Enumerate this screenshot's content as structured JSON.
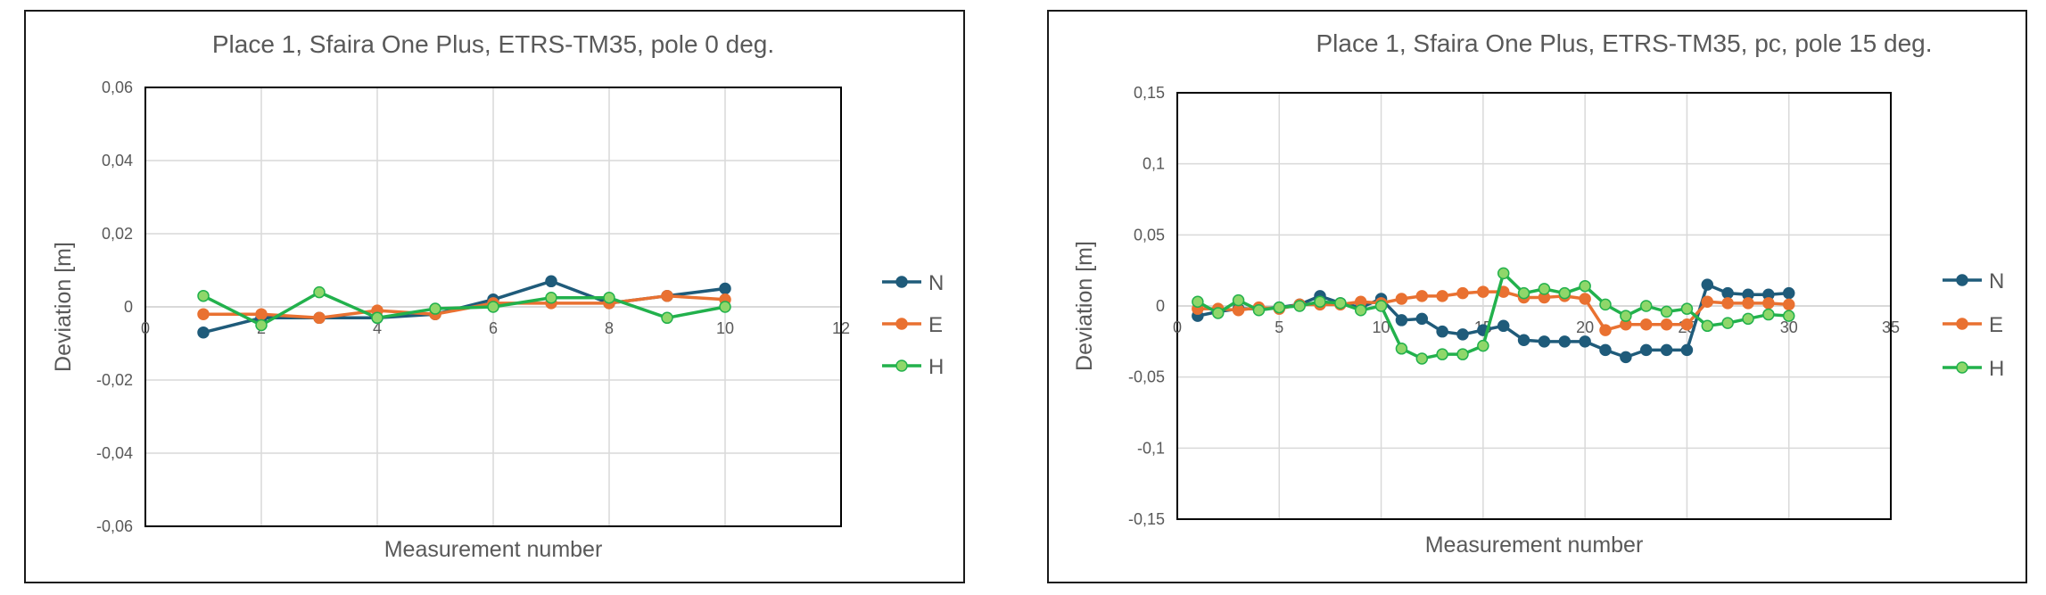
{
  "colors": {
    "N": "#1f5b7a",
    "E": "#e97131",
    "H": "#22b14c",
    "H_marker": "#8fd76a"
  },
  "chart_data": [
    {
      "type": "line",
      "title": "Place 1, Sfaira One Plus, ETRS-TM35, pole 0 deg.",
      "xlabel": "Measurement number",
      "ylabel": "Deviation [m]",
      "xlim": [
        0,
        12
      ],
      "ylim": [
        -0.06,
        0.06
      ],
      "xticks": [
        0,
        2,
        4,
        6,
        8,
        10,
        12
      ],
      "xtick_labels": [
        "0",
        "2",
        "4",
        "6",
        "8",
        "10",
        "12"
      ],
      "yticks": [
        -0.06,
        -0.04,
        -0.02,
        0,
        0.02,
        0.04,
        0.06
      ],
      "ytick_labels": [
        "-0,06",
        "-0,04",
        "-0,02",
        "0",
        "0,02",
        "0,04",
        "0,06"
      ],
      "grid": true,
      "legend": "right",
      "x": [
        1,
        2,
        3,
        4,
        5,
        6,
        7,
        8,
        9,
        10
      ],
      "series": [
        {
          "name": "N",
          "values": [
            -0.007,
            -0.003,
            -0.003,
            -0.003,
            -0.002,
            0.002,
            0.007,
            0.001,
            0.003,
            0.005
          ]
        },
        {
          "name": "E",
          "values": [
            -0.002,
            -0.002,
            -0.003,
            -0.001,
            -0.002,
            0.001,
            0.001,
            0.001,
            0.003,
            0.002
          ]
        },
        {
          "name": "H",
          "values": [
            0.003,
            -0.005,
            0.004,
            -0.003,
            -0.0005,
            0.0,
            0.0025,
            0.0025,
            -0.003,
            0.0
          ]
        }
      ]
    },
    {
      "type": "line",
      "title": "Place 1, Sfaira One Plus, ETRS-TM35, pc, pole 15 deg.",
      "xlabel": "Measurement number",
      "ylabel": "Deviation [m]",
      "xlim": [
        0,
        35
      ],
      "ylim": [
        -0.15,
        0.15
      ],
      "xticks": [
        0,
        5,
        10,
        15,
        20,
        25,
        30,
        35
      ],
      "xtick_labels": [
        "0",
        "5",
        "10",
        "15",
        "20",
        "25",
        "30",
        "35"
      ],
      "yticks": [
        -0.15,
        -0.1,
        -0.05,
        0,
        0.05,
        0.1,
        0.15
      ],
      "ytick_labels": [
        "-0,15",
        "-0,1",
        "-0,05",
        "0",
        "0,05",
        "0,1",
        "0,15"
      ],
      "grid": true,
      "legend": "right",
      "x": [
        1,
        2,
        3,
        4,
        5,
        6,
        7,
        8,
        9,
        10,
        11,
        12,
        13,
        14,
        15,
        16,
        17,
        18,
        19,
        20,
        21,
        22,
        23,
        24,
        25,
        26,
        27,
        28,
        29,
        30
      ],
      "series": [
        {
          "name": "N",
          "values": [
            -0.007,
            -0.004,
            -0.002,
            -0.002,
            -0.001,
            0.001,
            0.007,
            0.002,
            -0.001,
            0.005,
            -0.01,
            -0.009,
            -0.018,
            -0.02,
            -0.017,
            -0.014,
            -0.024,
            -0.025,
            -0.025,
            -0.025,
            -0.031,
            -0.036,
            -0.031,
            -0.031,
            -0.031,
            0.015,
            0.009,
            0.008,
            0.008,
            0.009
          ]
        },
        {
          "name": "E",
          "values": [
            -0.002,
            -0.002,
            -0.003,
            -0.001,
            -0.002,
            0.001,
            0.001,
            0.001,
            0.003,
            0.002,
            0.005,
            0.007,
            0.007,
            0.009,
            0.01,
            0.01,
            0.006,
            0.006,
            0.007,
            0.005,
            -0.017,
            -0.013,
            -0.013,
            -0.013,
            -0.013,
            0.003,
            0.002,
            0.002,
            0.002,
            0.001
          ]
        },
        {
          "name": "H",
          "values": [
            0.003,
            -0.005,
            0.004,
            -0.003,
            -0.001,
            0.0,
            0.003,
            0.002,
            -0.003,
            0.0,
            -0.03,
            -0.037,
            -0.034,
            -0.034,
            -0.028,
            0.023,
            0.009,
            0.012,
            0.009,
            0.014,
            0.001,
            -0.007,
            0.0,
            -0.004,
            -0.002,
            -0.014,
            -0.012,
            -0.009,
            -0.006,
            -0.007
          ]
        }
      ]
    }
  ]
}
